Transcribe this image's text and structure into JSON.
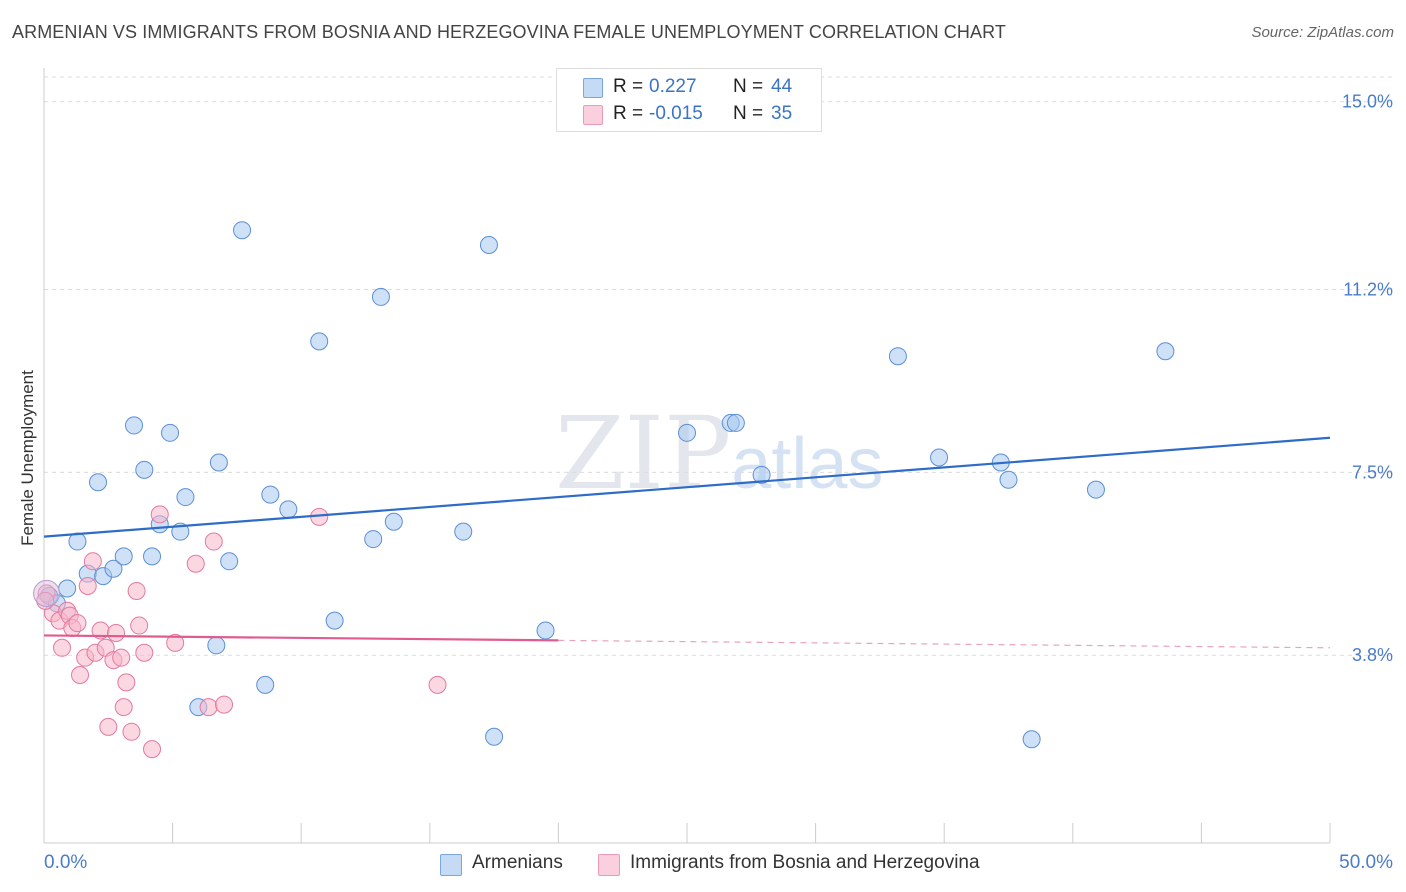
{
  "title": "ARMENIAN VS IMMIGRANTS FROM BOSNIA AND HERZEGOVINA FEMALE UNEMPLOYMENT CORRELATION CHART",
  "source": "Source: ZipAtlas.com",
  "watermark": {
    "main": "ZIP",
    "sub": "atlas"
  },
  "legend": {
    "rows": [
      {
        "r_label": "R =",
        "r_value": "0.227",
        "n_label": "N =",
        "n_value": "44",
        "color": "#a8c8f0"
      },
      {
        "r_label": "R =",
        "r_value": "-0.015",
        "n_label": "N =",
        "n_value": "35",
        "color": "#f7b6cb"
      }
    ]
  },
  "bottom_legend": [
    {
      "label": "Armenians",
      "color": "#a8c8f0"
    },
    {
      "label": "Immigrants from Bosnia and Herzegovina",
      "color": "#f7b6cb"
    }
  ],
  "chart_data": {
    "type": "scatter",
    "title": "ARMENIAN VS IMMIGRANTS FROM BOSNIA AND HERZEGOVINA FEMALE UNEMPLOYMENT CORRELATION CHART",
    "xlabel": "",
    "ylabel": "Female Unemployment",
    "xlim": [
      0,
      50
    ],
    "ylim": [
      0,
      15.5
    ],
    "x_tick_labels": [
      "0.0%",
      "50.0%"
    ],
    "y_ticks": [
      3.8,
      7.5,
      11.2,
      15.0
    ],
    "y_tick_labels": [
      "3.8%",
      "7.5%",
      "11.2%",
      "15.0%"
    ],
    "grid": "horizontal dashed",
    "series": [
      {
        "name": "Armenians",
        "color": "#a8c8f0",
        "stroke": "#5b8fd6",
        "trend": {
          "x0": 0,
          "y0": 6.2,
          "x1": 50,
          "y1": 8.2,
          "color": "#2f6cc8"
        },
        "points": [
          [
            0.2,
            5.0
          ],
          [
            0.5,
            4.85
          ],
          [
            0.9,
            5.15
          ],
          [
            1.3,
            6.1
          ],
          [
            1.7,
            5.45
          ],
          [
            2.1,
            7.3
          ],
          [
            2.3,
            5.4
          ],
          [
            2.7,
            5.55
          ],
          [
            3.1,
            5.8
          ],
          [
            3.5,
            8.45
          ],
          [
            3.9,
            7.55
          ],
          [
            4.2,
            5.8
          ],
          [
            4.5,
            6.45
          ],
          [
            4.9,
            8.3
          ],
          [
            5.3,
            6.3
          ],
          [
            5.5,
            7.0
          ],
          [
            6.0,
            2.75
          ],
          [
            6.7,
            4.0
          ],
          [
            6.8,
            7.7
          ],
          [
            7.2,
            5.7
          ],
          [
            7.7,
            12.4
          ],
          [
            8.6,
            3.2
          ],
          [
            8.8,
            7.05
          ],
          [
            9.5,
            6.75
          ],
          [
            10.7,
            10.15
          ],
          [
            11.3,
            4.5
          ],
          [
            12.8,
            6.15
          ],
          [
            13.1,
            11.05
          ],
          [
            13.6,
            6.5
          ],
          [
            16.3,
            6.3
          ],
          [
            17.3,
            12.1
          ],
          [
            17.5,
            2.15
          ],
          [
            19.5,
            4.3
          ],
          [
            25.0,
            8.3
          ],
          [
            26.7,
            8.5
          ],
          [
            26.9,
            8.5
          ],
          [
            27.9,
            7.45
          ],
          [
            33.2,
            9.85
          ],
          [
            34.8,
            7.8
          ],
          [
            37.2,
            7.7
          ],
          [
            37.5,
            7.35
          ],
          [
            38.4,
            2.1
          ],
          [
            40.9,
            7.15
          ],
          [
            43.6,
            9.95
          ]
        ]
      },
      {
        "name": "Immigrants from Bosnia and Herzegovina",
        "color": "#f7b6cb",
        "stroke": "#e27aa0",
        "trend": {
          "x0": 0,
          "y0": 4.2,
          "x1": 20,
          "y1": 4.1,
          "dash_to_x": 50,
          "dash_to_y": 3.95,
          "color": "#e05c8e"
        },
        "points": [
          [
            0.1,
            5.05
          ],
          [
            0.35,
            4.65
          ],
          [
            0.6,
            4.5
          ],
          [
            0.7,
            3.95
          ],
          [
            0.9,
            4.7
          ],
          [
            1.0,
            4.6
          ],
          [
            1.1,
            4.35
          ],
          [
            1.3,
            4.45
          ],
          [
            1.4,
            3.4
          ],
          [
            1.6,
            3.75
          ],
          [
            1.7,
            5.2
          ],
          [
            1.9,
            5.7
          ],
          [
            2.0,
            3.85
          ],
          [
            2.2,
            4.3
          ],
          [
            2.4,
            3.95
          ],
          [
            2.5,
            2.35
          ],
          [
            2.7,
            3.7
          ],
          [
            2.8,
            4.25
          ],
          [
            3.0,
            3.75
          ],
          [
            3.1,
            2.75
          ],
          [
            3.2,
            3.25
          ],
          [
            3.4,
            2.25
          ],
          [
            3.6,
            5.1
          ],
          [
            3.7,
            4.4
          ],
          [
            3.9,
            3.85
          ],
          [
            4.2,
            1.9
          ],
          [
            4.5,
            6.65
          ],
          [
            5.1,
            4.05
          ],
          [
            5.9,
            5.65
          ],
          [
            6.4,
            2.75
          ],
          [
            6.6,
            6.1
          ],
          [
            7.0,
            2.8
          ],
          [
            10.7,
            6.6
          ],
          [
            15.3,
            3.2
          ],
          [
            0.05,
            4.9
          ]
        ]
      }
    ]
  }
}
